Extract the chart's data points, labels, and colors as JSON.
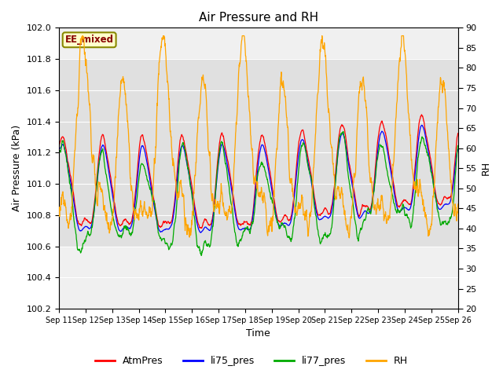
{
  "title": "Air Pressure and RH",
  "xlabel": "Time",
  "ylabel_left": "Air Pressure (kPa)",
  "ylabel_right": "RH",
  "annotation": "EE_mixed",
  "ylim_left": [
    100.2,
    102.0
  ],
  "ylim_right": [
    20,
    90
  ],
  "yticks_left": [
    100.2,
    100.4,
    100.6,
    100.8,
    101.0,
    101.2,
    101.4,
    101.6,
    101.8,
    102.0
  ],
  "yticks_right": [
    20,
    25,
    30,
    35,
    40,
    45,
    50,
    55,
    60,
    65,
    70,
    75,
    80,
    85,
    90
  ],
  "xtick_labels": [
    "Sep 11",
    "Sep 12",
    "Sep 13",
    "Sep 14",
    "Sep 15",
    "Sep 16",
    "Sep 17",
    "Sep 18",
    "Sep 19",
    "Sep 20",
    "Sep 21",
    "Sep 22",
    "Sep 23",
    "Sep 24",
    "Sep 25",
    "Sep 26"
  ],
  "colors": {
    "AtmPres": "#ff0000",
    "li75_pres": "#0000ff",
    "li77_pres": "#00aa00",
    "RH": "#ffa500"
  },
  "legend_labels": [
    "AtmPres",
    "li75_pres",
    "li77_pres",
    "RH"
  ],
  "bg_band": [
    100.6,
    101.8
  ],
  "annotation_bg": "#ffffcc",
  "annotation_border": "#888800",
  "annotation_text_color": "#880000",
  "title_fontsize": 11,
  "axis_label_fontsize": 9,
  "tick_fontsize": 8,
  "legend_fontsize": 9
}
